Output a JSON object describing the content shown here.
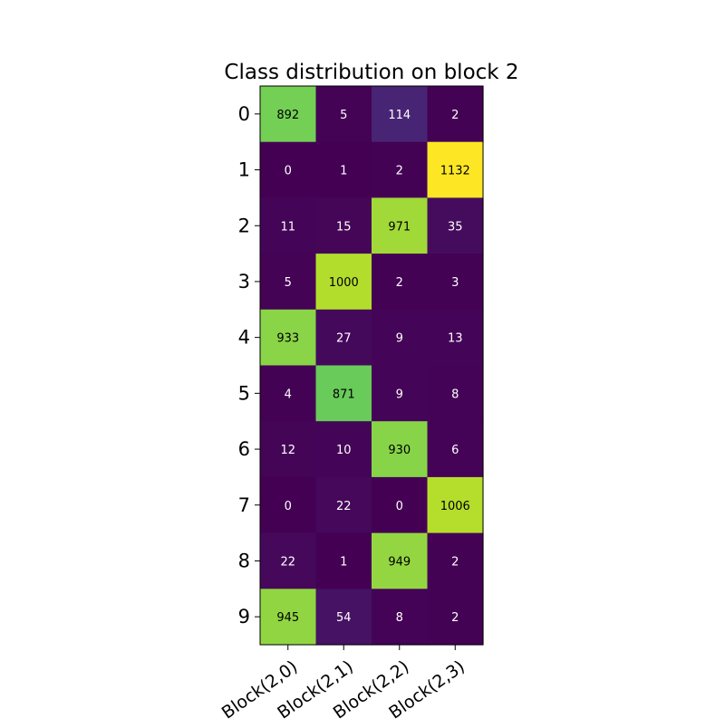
{
  "chart_data": {
    "type": "heatmap",
    "title": "Class distribution on block 2",
    "xlabel": "",
    "ylabel": "",
    "x_categories": [
      "Block(2,0)",
      "Block(2,1)",
      "Block(2,2)",
      "Block(2,3)"
    ],
    "y_categories": [
      "0",
      "1",
      "2",
      "3",
      "4",
      "5",
      "6",
      "7",
      "8",
      "9"
    ],
    "values": [
      [
        892,
        5,
        114,
        2
      ],
      [
        0,
        1,
        2,
        1132
      ],
      [
        11,
        15,
        971,
        35
      ],
      [
        5,
        1000,
        2,
        3
      ],
      [
        933,
        27,
        9,
        13
      ],
      [
        4,
        871,
        9,
        8
      ],
      [
        12,
        10,
        930,
        6
      ],
      [
        0,
        22,
        0,
        1006
      ],
      [
        22,
        1,
        949,
        2
      ],
      [
        945,
        54,
        8,
        2
      ]
    ],
    "value_range": [
      0,
      1132
    ],
    "colormap": "viridis",
    "grid": false,
    "x_tick_rotation": 35
  }
}
